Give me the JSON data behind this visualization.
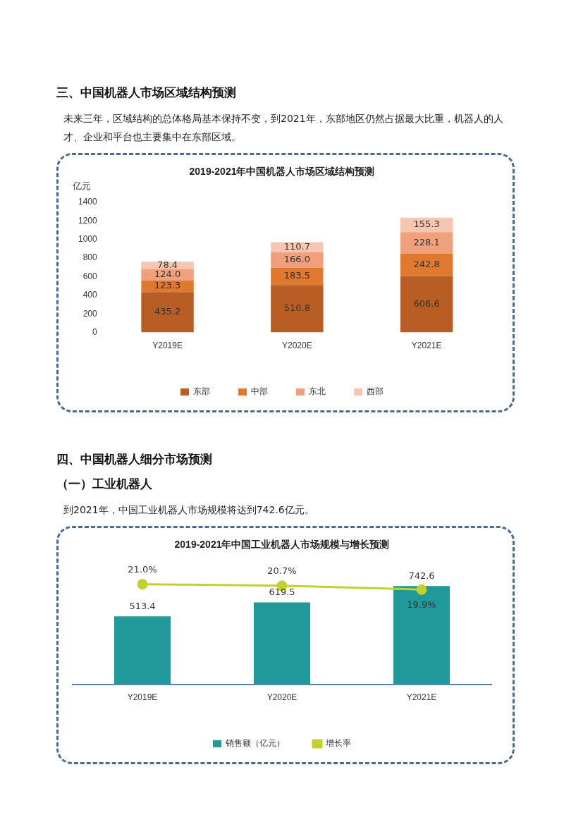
{
  "chart_data": [
    {
      "type": "bar",
      "title": "2019-2021年中国机器人市场区域结构预测",
      "annotations": [
        "三、中国机器人市场区域结构预测",
        "未来三年，区域结构的总体格局基本保持不变，到2021年，东部地区仍然占据最大比重，机器人的人才、企业和平台也主要集中在东部区域。"
      ],
      "ylabel": "亿元",
      "categories": [
        "Y2019E",
        "Y2020E",
        "Y2021E"
      ],
      "stacked": true,
      "series": [
        {
          "name": "东部",
          "color": "#b85d24",
          "values": [
            435.2,
            510.8,
            606.6
          ],
          "value_labels": [
            "435.2",
            "510.8",
            "606.6"
          ]
        },
        {
          "name": "中部",
          "color": "#e0782f",
          "values": [
            123.3,
            183.5,
            242.8
          ],
          "value_labels": [
            "123.3",
            "183.5",
            "242.8"
          ]
        },
        {
          "name": "东北",
          "color": "#f0a07b",
          "values": [
            124.0,
            166.0,
            228.1
          ],
          "value_labels": [
            "124.0",
            "166.0",
            "228.1"
          ]
        },
        {
          "name": "西部",
          "color": "#f6c6b0",
          "values": [
            78.4,
            110.7,
            155.3
          ],
          "value_labels": [
            "78.4",
            "110.7",
            "155.3"
          ]
        }
      ],
      "ylim": [
        0,
        1400
      ],
      "yticks": [
        0,
        200,
        400,
        600,
        800,
        1000,
        1200,
        1400
      ],
      "grid": false,
      "legend": "bottom"
    },
    {
      "type": "bar",
      "title": "2019-2021年中国工业机器人市场规模与增长预测",
      "annotations": [
        "四、中国机器人细分市场预测",
        "（一）工业机器人",
        "到2021年，中国工业机器人市场规模将达到742.6亿元。"
      ],
      "categories": [
        "Y2019E",
        "Y2020E",
        "Y2021E"
      ],
      "series": [
        {
          "name": "销售额（亿元）",
          "type": "bar",
          "color": "#21999a",
          "values": [
            513.4,
            619.5,
            742.6
          ],
          "value_labels": [
            "513.4",
            "619.5",
            "742.6"
          ]
        },
        {
          "name": "增长率",
          "type": "line",
          "axis": "y2",
          "color": "#c3d12f",
          "marker": "circle",
          "values": [
            21.0,
            20.7,
            19.9
          ],
          "value_labels": [
            "21.0%",
            "20.7%",
            "19.9%"
          ]
        }
      ],
      "tick_labels": "x",
      "grid": false,
      "legend": "bottom"
    }
  ]
}
